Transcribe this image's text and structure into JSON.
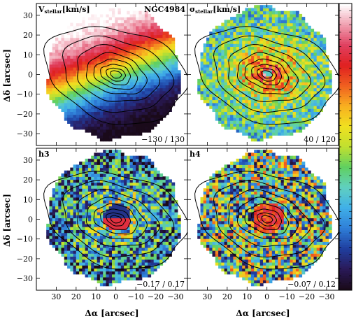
{
  "chart_data": [
    {
      "type": "heatmap",
      "title": "V",
      "title_sub": "stellar",
      "title_unit": "[km/s]",
      "annotation": "NGC4984",
      "range_label": "−130 / 130",
      "vmin": -130,
      "vmax": 130,
      "ylabel": "Δδ [arcsec]",
      "xlabel": "",
      "xlim": [
        40,
        -36
      ],
      "ylim": [
        -36,
        36
      ],
      "xticks": [
        "30",
        "20",
        "10",
        "0",
        "−10",
        "−20",
        "−30"
      ],
      "yticks": [
        "30",
        "20",
        "10",
        "0",
        "−10",
        "−20",
        "−30"
      ],
      "pattern": "rotation",
      "contours": true
    },
    {
      "type": "heatmap",
      "title": "σ",
      "title_sub": "stellar",
      "title_unit": "[km/s]",
      "annotation": "",
      "range_label": "40 / 120",
      "vmin": 40,
      "vmax": 120,
      "ylabel": "",
      "xlabel": "",
      "xlim": [
        40,
        -36
      ],
      "ylim": [
        -36,
        36
      ],
      "xticks": [
        "30",
        "20",
        "10",
        "0",
        "−10",
        "−20",
        "−30"
      ],
      "yticks": [
        "30",
        "20",
        "10",
        "0",
        "−10",
        "−20",
        "−30"
      ],
      "pattern": "dispersion",
      "contours": true
    },
    {
      "type": "heatmap",
      "title": "h3",
      "title_sub": "",
      "title_unit": "",
      "annotation": "",
      "range_label": "−0.17 / 0.17",
      "vmin": -0.17,
      "vmax": 0.17,
      "ylabel": "Δδ [arcsec]",
      "xlabel": "Δα [arcsec]",
      "xlim": [
        40,
        -36
      ],
      "ylim": [
        -36,
        36
      ],
      "xticks": [
        "30",
        "20",
        "10",
        "0",
        "−10",
        "−20",
        "−30"
      ],
      "yticks": [
        "30",
        "20",
        "10",
        "0",
        "−10",
        "−20",
        "−30"
      ],
      "pattern": "h3",
      "contours": true
    },
    {
      "type": "heatmap",
      "title": "h4",
      "title_sub": "",
      "title_unit": "",
      "annotation": "",
      "range_label": "−0.07 / 0.12",
      "vmin": -0.07,
      "vmax": 0.12,
      "ylabel": "",
      "xlabel": "Δα [arcsec]",
      "xlim": [
        40,
        -36
      ],
      "ylim": [
        -36,
        36
      ],
      "xticks": [
        "30",
        "20",
        "10",
        "0",
        "−10",
        "−20",
        "−30"
      ],
      "yticks": [
        "30",
        "20",
        "10",
        "0",
        "−10",
        "−20",
        "−30"
      ],
      "pattern": "h4",
      "contours": true
    }
  ],
  "colorbar": {
    "colors": [
      "#1a0a1a",
      "#2a1a5a",
      "#1f3fa0",
      "#2f7fd8",
      "#40b0e8",
      "#60d0c0",
      "#60d060",
      "#c0e030",
      "#f0e020",
      "#f8b020",
      "#f06020",
      "#e02020",
      "#e04060",
      "#f0a0b0",
      "#ffffff"
    ]
  }
}
